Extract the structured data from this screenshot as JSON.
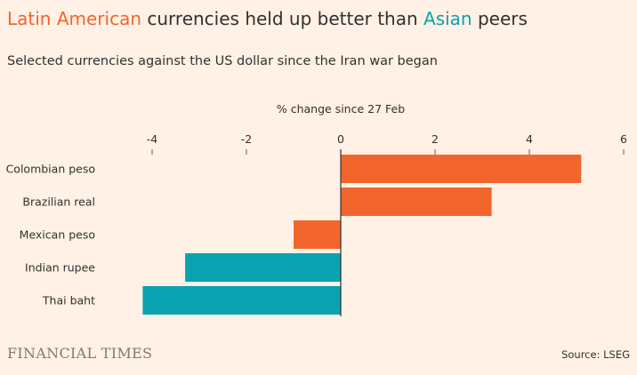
{
  "title": {
    "highlight1": "Latin American",
    "middle": " currencies held up better than ",
    "highlight2": "Asian",
    "end": " peers"
  },
  "subtitle": "Selected currencies against the US dollar since the Iran war began",
  "brand": "FINANCIAL TIMES",
  "source": "Source: LSEG",
  "colors": {
    "background": "#fff1e5",
    "latin_america": "#f2652d",
    "asia": "#0aa2b0",
    "text": "#33302e",
    "zero_line": "#33302e"
  },
  "chart_data": {
    "type": "bar",
    "orientation": "horizontal",
    "xlabel": "% change since 27 Feb",
    "xlim": [
      -4.2,
      6
    ],
    "xticks": [
      -4,
      -2,
      0,
      2,
      4,
      6
    ],
    "xtick_labels": [
      "-4",
      "-2",
      "0",
      "2",
      "4",
      "6"
    ],
    "categories": [
      "Colombian peso",
      "Brazilian real",
      "Mexican peso",
      "Indian rupee",
      "Thai baht"
    ],
    "values": [
      5.1,
      3.2,
      -1.0,
      -3.3,
      -4.2
    ],
    "groups": [
      "latin_america",
      "latin_america",
      "latin_america",
      "asia",
      "asia"
    ],
    "grid": false,
    "legend": "none"
  }
}
